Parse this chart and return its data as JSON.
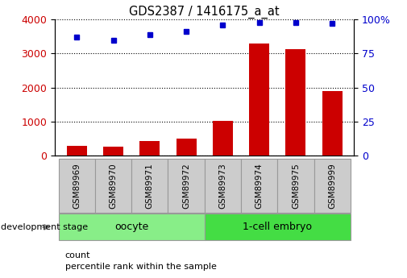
{
  "title": "GDS2387 / 1416175_a_at",
  "samples": [
    "GSM89969",
    "GSM89970",
    "GSM89971",
    "GSM89972",
    "GSM89973",
    "GSM89974",
    "GSM89975",
    "GSM89999"
  ],
  "counts": [
    300,
    260,
    430,
    490,
    1030,
    3300,
    3130,
    1900
  ],
  "percentile_ranks": [
    87,
    85,
    89,
    91,
    96,
    98,
    98,
    97
  ],
  "groups": [
    {
      "label": "oocyte",
      "start": 0,
      "end": 3,
      "color": "#88ee88"
    },
    {
      "label": "1-cell embryo",
      "start": 4,
      "end": 7,
      "color": "#44dd44"
    }
  ],
  "bar_color": "#cc0000",
  "dot_color": "#0000cc",
  "ylim_left": [
    0,
    4000
  ],
  "ylim_right": [
    0,
    100
  ],
  "yticks_left": [
    0,
    1000,
    2000,
    3000,
    4000
  ],
  "yticks_right": [
    0,
    25,
    50,
    75,
    100
  ],
  "grid_color": "#000000",
  "dev_stage_label": "development stage",
  "legend_count_label": "count",
  "legend_pct_label": "percentile rank within the sample",
  "tick_label_fontsize": 8,
  "sample_box_color": "#cccccc",
  "sample_box_edge": "#999999"
}
